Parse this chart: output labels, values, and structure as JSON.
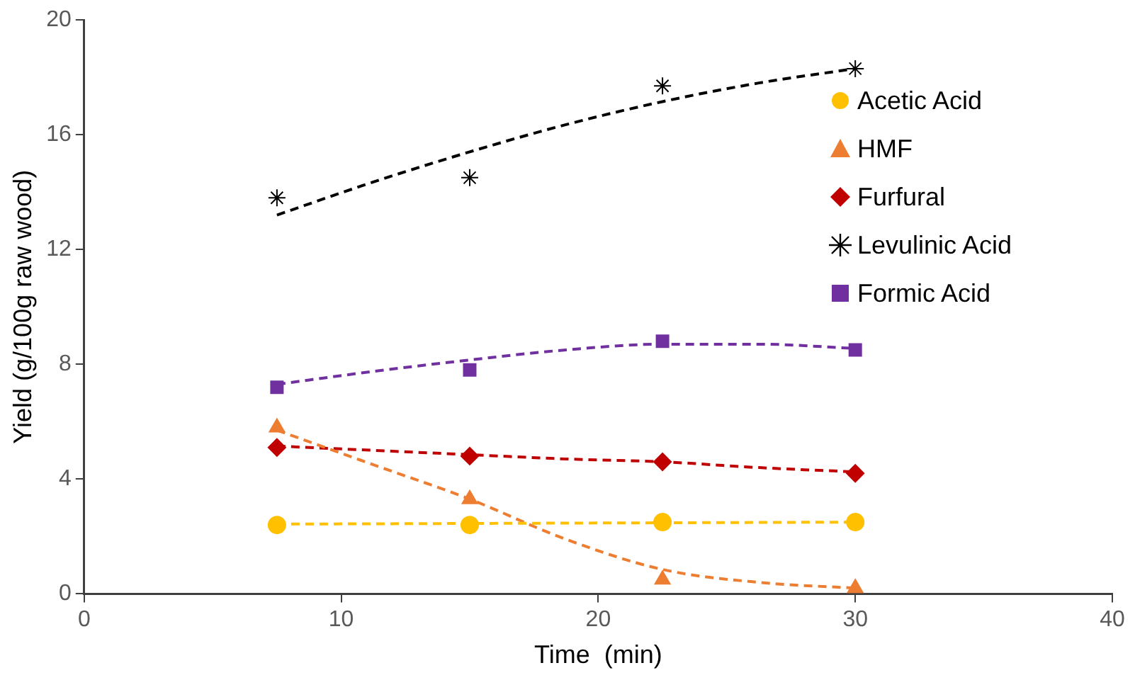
{
  "chart_data": {
    "type": "scatter",
    "xlabel": "Time  (min)",
    "ylabel": "Yield (g/100g raw wood)",
    "xlim": [
      0,
      40
    ],
    "xticks": [
      0,
      10,
      20,
      30,
      40
    ],
    "ylim": [
      0,
      20
    ],
    "yticks": [
      0,
      4,
      8,
      12,
      16,
      20
    ],
    "grid": false,
    "legend": "top right",
    "series": [
      {
        "type": "line",
        "color": "#ffc000",
        "line_style": "dashed",
        "marker": "none",
        "x": [
          7.5,
          30
        ],
        "values": [
          2.43,
          2.5
        ]
      },
      {
        "type": "line",
        "color": "#ed7d31",
        "line_style": "dashed",
        "marker": "none",
        "x": [
          7.5,
          11.25,
          15,
          18.75,
          22.5,
          26.25,
          30
        ],
        "values": [
          5.7,
          4.5,
          3.3,
          1.9,
          0.85,
          0.4,
          0.2
        ]
      },
      {
        "type": "line",
        "color": "#c00000",
        "line_style": "dashed",
        "marker": "none",
        "x": [
          7.5,
          11.25,
          15,
          18.75,
          22.5,
          26.25,
          30
        ],
        "values": [
          5.15,
          5.0,
          4.85,
          4.7,
          4.6,
          4.4,
          4.25
        ]
      },
      {
        "type": "line",
        "color": "#000000",
        "line_style": "dashed",
        "marker": "none",
        "x": [
          7.5,
          11.25,
          15,
          18.75,
          22.5,
          26.25,
          30
        ],
        "values": [
          13.2,
          14.35,
          15.4,
          16.35,
          17.15,
          17.8,
          18.3
        ]
      },
      {
        "type": "line",
        "color": "#7030a0",
        "line_style": "dashed",
        "marker": "none",
        "x": [
          7.5,
          11.25,
          15,
          18.75,
          22.5,
          26.25,
          30
        ],
        "values": [
          7.3,
          7.75,
          8.15,
          8.5,
          8.7,
          8.7,
          8.55
        ]
      },
      {
        "type": "scatter",
        "name": "Acetic Acid",
        "color": "#ffc000",
        "marker": "circle",
        "x": [
          7.5,
          15,
          22.5,
          30
        ],
        "values": [
          2.4,
          2.4,
          2.5,
          2.5
        ]
      },
      {
        "type": "scatter",
        "name": "HMF",
        "color": "#ed7d31",
        "marker": "triangle",
        "x": [
          7.5,
          15,
          22.5,
          30
        ],
        "values": [
          5.8,
          3.3,
          0.5,
          0.2
        ]
      },
      {
        "type": "scatter",
        "name": "Furfural",
        "color": "#c00000",
        "marker": "diamond",
        "x": [
          7.5,
          15,
          22.5,
          30
        ],
        "values": [
          5.1,
          4.8,
          4.6,
          4.2
        ]
      },
      {
        "type": "scatter",
        "name": "Levulinic Acid",
        "color": "#000000",
        "marker": "cross",
        "x": [
          7.5,
          15,
          22.5,
          30
        ],
        "values": [
          13.8,
          14.5,
          17.7,
          18.3
        ]
      },
      {
        "type": "scatter",
        "name": "Formic Acid",
        "color": "#7030a0",
        "marker": "square",
        "x": [
          7.5,
          15,
          22.5,
          30
        ],
        "values": [
          7.2,
          7.8,
          8.8,
          8.5
        ]
      }
    ]
  }
}
